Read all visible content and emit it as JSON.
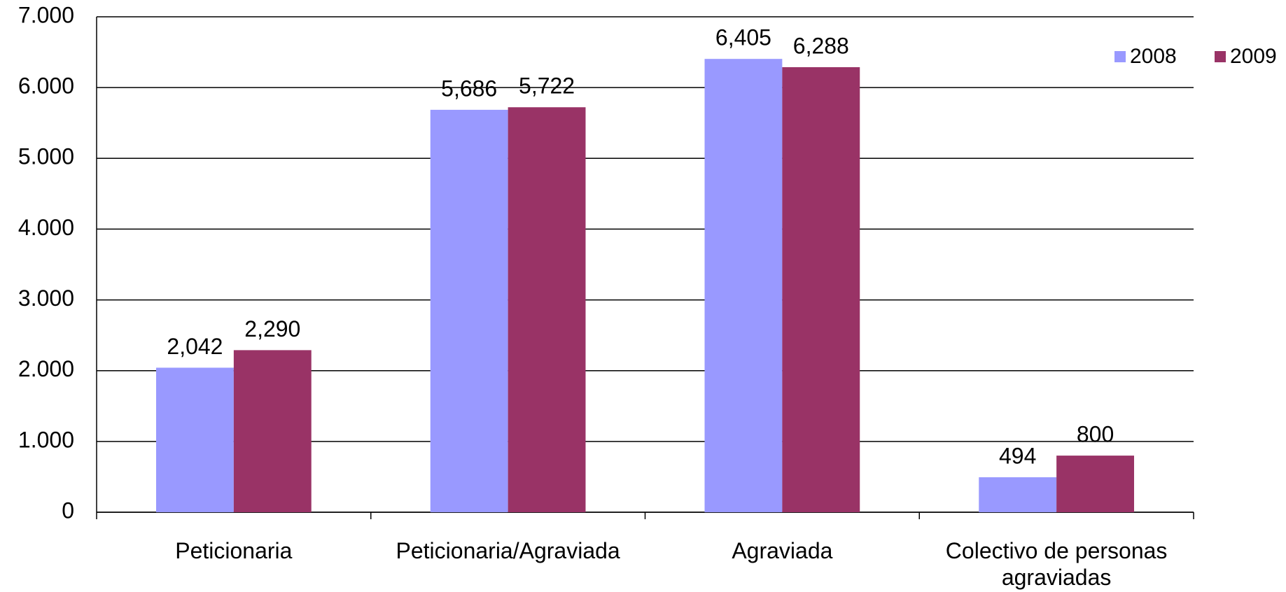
{
  "chart_data": {
    "type": "bar",
    "categories": [
      "Peticionaria",
      "Peticionaria/Agraviada",
      "Agraviada",
      "Colectivo de personas agraviadas"
    ],
    "series": [
      {
        "name": "2008",
        "color": "#9999ff",
        "values": [
          2042,
          5686,
          6405,
          494
        ],
        "value_labels": [
          "2,042",
          "5,686",
          "6,405",
          "494"
        ]
      },
      {
        "name": "2009",
        "color": "#993366",
        "values": [
          2290,
          5722,
          6288,
          800
        ],
        "value_labels": [
          "2,290",
          "5,722",
          "6,288",
          "800"
        ]
      }
    ],
    "ylim": [
      0,
      7000
    ],
    "yticks": [
      0,
      {
        "value": 1000,
        "label": "1.000"
      },
      {
        "value": 2000,
        "label": "2.000"
      },
      {
        "value": 3000,
        "label": "3.000"
      },
      {
        "value": 4000,
        "label": "4.000"
      },
      {
        "value": 5000,
        "label": "5.000"
      },
      {
        "value": 6000,
        "label": "6.000"
      },
      {
        "value": 7000,
        "label": "7.000"
      }
    ],
    "grid": true,
    "legend": "top-right"
  }
}
